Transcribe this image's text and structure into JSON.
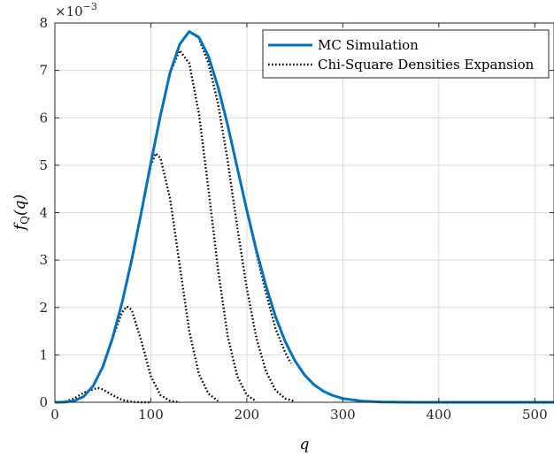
{
  "chart_data": {
    "type": "line",
    "xlabel": "q",
    "ylabel": "f_Q(q)",
    "ylabel_main": "f",
    "ylabel_sub": "Q",
    "ylabel_arg": "(q)",
    "y_multiplier": "×10",
    "y_multiplier_exp": "−3",
    "xlim": [
      0,
      520
    ],
    "ylim": [
      0,
      8
    ],
    "x_ticks": [
      "0",
      "100",
      "200",
      "300",
      "400",
      "500"
    ],
    "y_ticks": [
      "0",
      "1",
      "2",
      "3",
      "4",
      "5",
      "6",
      "7",
      "8"
    ],
    "grid": true,
    "legend_position": "top-right",
    "series": [
      {
        "name": "MC Simulation",
        "color": "#0072BD",
        "style": "solid",
        "x": [
          0,
          10,
          20,
          30,
          40,
          50,
          60,
          70,
          80,
          90,
          100,
          110,
          120,
          130,
          140,
          150,
          160,
          170,
          180,
          190,
          200,
          210,
          220,
          230,
          240,
          250,
          260,
          270,
          280,
          290,
          300,
          320,
          340,
          360,
          380,
          400,
          450,
          520
        ],
        "y": [
          0,
          0.005,
          0.03,
          0.12,
          0.35,
          0.75,
          1.35,
          2.1,
          3.0,
          4.0,
          5.05,
          6.05,
          6.95,
          7.55,
          7.82,
          7.7,
          7.3,
          6.65,
          5.85,
          4.95,
          4.05,
          3.2,
          2.45,
          1.8,
          1.28,
          0.88,
          0.58,
          0.37,
          0.23,
          0.14,
          0.08,
          0.025,
          0.008,
          0.003,
          0.001,
          0,
          0,
          0
        ]
      },
      {
        "name": "Chi-Square Densities Expansion",
        "color": "#000000",
        "style": "dotted",
        "x": [
          0,
          10,
          20,
          30,
          40,
          45,
          50,
          60,
          70,
          80,
          90,
          100
        ],
        "y": [
          0,
          0.01,
          0.08,
          0.2,
          0.28,
          0.3,
          0.27,
          0.15,
          0.05,
          0.01,
          0,
          0
        ]
      },
      {
        "name": "",
        "color": "#000000",
        "style": "dotted",
        "x": [
          0,
          10,
          20,
          30,
          40,
          50,
          60,
          70,
          75,
          80,
          90,
          100,
          110,
          120,
          130
        ],
        "y": [
          0,
          0.005,
          0.03,
          0.12,
          0.35,
          0.75,
          1.35,
          1.9,
          2.02,
          1.95,
          1.3,
          0.55,
          0.15,
          0.03,
          0
        ]
      },
      {
        "name": "",
        "color": "#000000",
        "style": "dotted",
        "x": [
          0,
          10,
          20,
          30,
          40,
          50,
          60,
          70,
          80,
          90,
          100,
          105,
          110,
          120,
          130,
          140,
          150,
          160,
          170
        ],
        "y": [
          0,
          0.005,
          0.03,
          0.12,
          0.35,
          0.75,
          1.35,
          2.1,
          3.0,
          4.0,
          5.0,
          5.25,
          5.15,
          4.3,
          2.9,
          1.5,
          0.6,
          0.18,
          0.03
        ]
      },
      {
        "name": "",
        "color": "#000000",
        "style": "dotted",
        "x": [
          0,
          10,
          20,
          30,
          40,
          50,
          60,
          70,
          80,
          90,
          100,
          110,
          120,
          130,
          140,
          150,
          160,
          170,
          180,
          190,
          200,
          210
        ],
        "y": [
          0,
          0.005,
          0.03,
          0.12,
          0.35,
          0.75,
          1.35,
          2.1,
          3.0,
          4.0,
          5.05,
          6.05,
          6.95,
          7.42,
          7.15,
          6.1,
          4.5,
          2.8,
          1.4,
          0.55,
          0.15,
          0.02
        ]
      },
      {
        "name": "",
        "color": "#000000",
        "style": "dotted",
        "x": [
          0,
          10,
          20,
          30,
          40,
          50,
          60,
          70,
          80,
          90,
          100,
          110,
          120,
          130,
          140,
          150,
          160,
          170,
          180,
          190,
          200,
          210,
          220,
          230,
          240,
          250
        ],
        "y": [
          0,
          0.005,
          0.03,
          0.12,
          0.35,
          0.75,
          1.35,
          2.1,
          3.0,
          4.0,
          5.05,
          6.05,
          6.95,
          7.55,
          7.82,
          7.68,
          7.15,
          6.3,
          5.1,
          3.7,
          2.4,
          1.35,
          0.65,
          0.25,
          0.08,
          0.02
        ]
      },
      {
        "name": "",
        "color": "#000000",
        "style": "dotted",
        "x": [
          0,
          10,
          20,
          30,
          40,
          50,
          60,
          70,
          80,
          90,
          100,
          110,
          120,
          130,
          140,
          150,
          160,
          170,
          180,
          190,
          200,
          210,
          220,
          230,
          240,
          246
        ],
        "y": [
          0,
          0.005,
          0.03,
          0.12,
          0.35,
          0.75,
          1.35,
          2.1,
          3.0,
          4.0,
          5.05,
          6.05,
          6.95,
          7.55,
          7.82,
          7.7,
          7.3,
          6.65,
          5.85,
          4.95,
          4.05,
          3.15,
          2.3,
          1.55,
          1.05,
          0.82
        ]
      }
    ]
  }
}
